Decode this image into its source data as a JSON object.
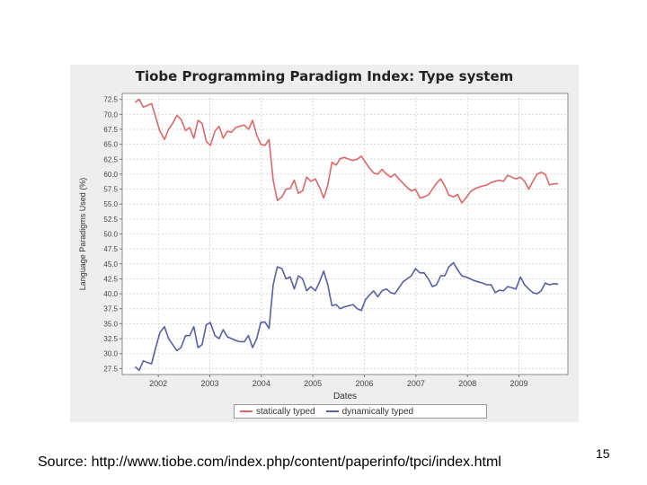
{
  "slide": {
    "source": "Source: http://www.tiobe.com/index.php/content/paperinfo/tpci/index.html",
    "page_number": "15"
  },
  "chart_data": {
    "type": "line",
    "title": "Tiobe Programming Paradigm Index:  Type system",
    "xlabel": "Dates",
    "ylabel": "Language Paradigms Used (%)",
    "x_tick_labels": [
      "2002",
      "2003",
      "2004",
      "2005",
      "2006",
      "2007",
      "2008",
      "2009"
    ],
    "y_tick_labels": [
      "27.5",
      "30.0",
      "32.5",
      "35.0",
      "37.5",
      "40.0",
      "42.5",
      "45.0",
      "47.5",
      "50.0",
      "52.5",
      "55.0",
      "57.5",
      "60.0",
      "62.5",
      "65.0",
      "67.5",
      "70.0",
      "72.5"
    ],
    "ylim": [
      26.5,
      73.5
    ],
    "xlim": [
      2001.3,
      2009.95
    ],
    "grid": true,
    "legend_position": "bottom",
    "colors": {
      "statically typed": "#e06666",
      "dynamically typed": "#5560a8",
      "panel": "#eeeeee",
      "plot_area": "#ffffff",
      "grid": "#d6d6d6"
    },
    "series": [
      {
        "name": "statically typed",
        "x": [
          2001.55,
          2001.63,
          2001.71,
          2001.79,
          2001.87,
          2001.95,
          2002.03,
          2002.12,
          2002.2,
          2002.28,
          2002.36,
          2002.44,
          2002.53,
          2002.61,
          2002.69,
          2002.77,
          2002.85,
          2002.93,
          2003.01,
          2003.1,
          2003.18,
          2003.26,
          2003.34,
          2003.42,
          2003.5,
          2003.58,
          2003.67,
          2003.75,
          2003.83,
          2003.91,
          2003.99,
          2004.07,
          2004.15,
          2004.23,
          2004.31,
          2004.4,
          2004.48,
          2004.56,
          2004.64,
          2004.72,
          2004.8,
          2004.88,
          2004.96,
          2005.05,
          2005.13,
          2005.21,
          2005.29,
          2005.37,
          2005.45,
          2005.53,
          2005.61,
          2005.7,
          2005.78,
          2005.86,
          2005.94,
          2006.02,
          2006.1,
          2006.18,
          2006.26,
          2006.34,
          2006.43,
          2006.51,
          2006.59,
          2006.67,
          2006.75,
          2006.83,
          2006.91,
          2006.99,
          2007.08,
          2007.16,
          2007.24,
          2007.32,
          2007.4,
          2007.48,
          2007.56,
          2007.64,
          2007.73,
          2007.81,
          2007.89,
          2007.97,
          2008.05,
          2008.13,
          2008.21,
          2008.29,
          2008.38,
          2008.46,
          2008.54,
          2008.62,
          2008.7,
          2008.78,
          2008.86,
          2008.94,
          2009.03,
          2009.11,
          2009.19,
          2009.27,
          2009.35,
          2009.43,
          2009.51,
          2009.59,
          2009.68,
          2009.76
        ],
        "values": [
          72.0,
          72.5,
          71.2,
          71.5,
          71.8,
          69.5,
          67.2,
          65.8,
          67.5,
          68.5,
          69.8,
          69.2,
          67.3,
          67.8,
          66.0,
          69.0,
          68.5,
          65.5,
          64.8,
          67.2,
          68.0,
          66.0,
          67.2,
          67.0,
          67.8,
          68.0,
          68.2,
          67.5,
          69.0,
          66.5,
          65.0,
          64.8,
          65.8,
          59.0,
          55.6,
          56.2,
          57.5,
          57.6,
          59.0,
          56.8,
          57.2,
          59.5,
          58.8,
          59.2,
          57.8,
          56.0,
          58.2,
          62.0,
          61.5,
          62.6,
          62.8,
          62.5,
          62.3,
          62.5,
          63.0,
          62.0,
          61.0,
          60.2,
          60.0,
          60.8,
          60.0,
          59.5,
          60.0,
          59.2,
          58.5,
          57.8,
          57.2,
          57.5,
          56.0,
          56.2,
          56.5,
          57.5,
          58.5,
          59.2,
          58.0,
          56.5,
          56.2,
          56.6,
          55.2,
          56.0,
          57.0,
          57.5,
          57.8,
          58.0,
          58.2,
          58.6,
          58.8,
          59.0,
          58.8,
          59.8,
          59.5,
          59.2,
          59.5,
          58.8,
          57.5,
          58.8,
          60.0,
          60.3,
          60.0,
          58.2,
          58.4,
          58.4
        ]
      },
      {
        "name": "dynamically typed",
        "x": [
          2001.55,
          2001.63,
          2001.71,
          2001.79,
          2001.87,
          2001.95,
          2002.03,
          2002.12,
          2002.2,
          2002.28,
          2002.36,
          2002.44,
          2002.53,
          2002.61,
          2002.69,
          2002.77,
          2002.85,
          2002.93,
          2003.01,
          2003.1,
          2003.18,
          2003.26,
          2003.34,
          2003.42,
          2003.5,
          2003.58,
          2003.67,
          2003.75,
          2003.83,
          2003.91,
          2003.99,
          2004.07,
          2004.15,
          2004.23,
          2004.31,
          2004.4,
          2004.48,
          2004.56,
          2004.64,
          2004.72,
          2004.8,
          2004.88,
          2004.96,
          2005.05,
          2005.13,
          2005.21,
          2005.29,
          2005.37,
          2005.45,
          2005.53,
          2005.61,
          2005.7,
          2005.78,
          2005.86,
          2005.94,
          2006.02,
          2006.1,
          2006.18,
          2006.26,
          2006.34,
          2006.43,
          2006.51,
          2006.59,
          2006.67,
          2006.75,
          2006.83,
          2006.91,
          2006.99,
          2007.08,
          2007.16,
          2007.24,
          2007.32,
          2007.4,
          2007.48,
          2007.56,
          2007.64,
          2007.73,
          2007.81,
          2007.89,
          2007.97,
          2008.05,
          2008.13,
          2008.21,
          2008.29,
          2008.38,
          2008.46,
          2008.54,
          2008.62,
          2008.7,
          2008.78,
          2008.86,
          2008.94,
          2009.03,
          2009.11,
          2009.19,
          2009.27,
          2009.35,
          2009.43,
          2009.51,
          2009.59,
          2009.68,
          2009.76
        ],
        "values": [
          27.8,
          27.2,
          28.8,
          28.5,
          28.3,
          31.0,
          33.5,
          34.5,
          32.5,
          31.5,
          30.5,
          31.0,
          33.0,
          33.0,
          34.5,
          31.0,
          31.5,
          34.8,
          35.2,
          33.0,
          32.5,
          34.0,
          32.8,
          32.5,
          32.2,
          32.0,
          32.0,
          33.0,
          31.0,
          32.5,
          35.2,
          35.3,
          34.2,
          41.5,
          44.5,
          44.2,
          42.5,
          42.8,
          40.8,
          43.0,
          42.5,
          40.5,
          41.2,
          40.5,
          42.0,
          43.8,
          41.5,
          38.0,
          38.2,
          37.5,
          37.8,
          38.0,
          38.2,
          37.5,
          37.2,
          39.0,
          39.8,
          40.5,
          39.5,
          40.5,
          40.8,
          40.2,
          40.0,
          41.0,
          42.0,
          42.5,
          43.0,
          44.2,
          43.5,
          43.5,
          42.5,
          41.2,
          41.5,
          43.0,
          43.0,
          44.5,
          45.2,
          44.0,
          43.0,
          42.8,
          42.5,
          42.2,
          42.0,
          41.8,
          41.5,
          41.5,
          40.2,
          40.6,
          40.5,
          41.2,
          41.0,
          40.8,
          42.8,
          41.5,
          40.8,
          40.2,
          40.0,
          40.5,
          41.8,
          41.5,
          41.7,
          41.6
        ]
      }
    ]
  }
}
